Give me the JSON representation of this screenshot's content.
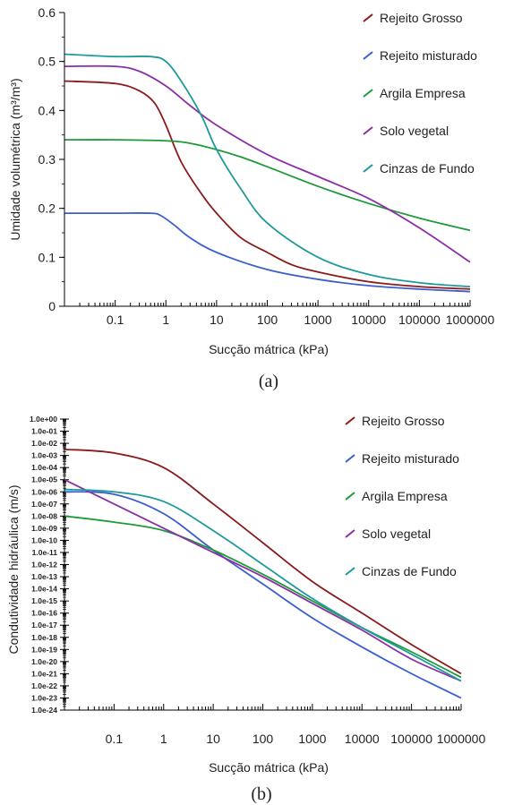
{
  "colors": {
    "rejeito_grosso": "#8B1A1A",
    "rejeito_misturado": "#3A5FCD",
    "argila_empresa": "#1E9A3A",
    "solo_vegetal": "#8B2FA6",
    "cinzas_de_fundo": "#1E9A9A"
  },
  "chart_data": [
    {
      "type": "line",
      "caption": "(a)",
      "xlabel": "Sucção mátrica (kPa)",
      "ylabel": "Umidade volumétrica (m³/m³)",
      "xscale": "log",
      "xlim": [
        0.01,
        1000000
      ],
      "ylim": [
        0,
        0.6
      ],
      "x_ticks": [
        "0.1",
        "1",
        "10",
        "100",
        "1000",
        "10000",
        "100000",
        "1000000"
      ],
      "y_ticks": [
        "0",
        "0.1",
        "0.2",
        "0.3",
        "0.4",
        "0.5",
        "0.6"
      ],
      "legend_position": "top-right",
      "series": [
        {
          "name": "Rejeito Grosso",
          "color_key": "rejeito_grosso",
          "x": [
            0.01,
            0.1,
            0.3,
            0.6,
            1,
            2,
            5,
            10,
            30,
            100,
            300,
            1000,
            10000,
            100000,
            1000000
          ],
          "y": [
            0.46,
            0.455,
            0.44,
            0.415,
            0.37,
            0.295,
            0.23,
            0.19,
            0.14,
            0.11,
            0.085,
            0.07,
            0.05,
            0.04,
            0.035
          ]
        },
        {
          "name": "Rejeito misturado",
          "color_key": "rejeito_misturado",
          "x": [
            0.01,
            0.1,
            0.5,
            0.8,
            1.5,
            3,
            10,
            100,
            1000,
            10000,
            100000,
            1000000
          ],
          "y": [
            0.19,
            0.19,
            0.19,
            0.185,
            0.165,
            0.14,
            0.11,
            0.075,
            0.055,
            0.042,
            0.035,
            0.03
          ]
        },
        {
          "name": "Argila Empresa",
          "color_key": "argila_empresa",
          "x": [
            0.01,
            0.1,
            1,
            3,
            10,
            30,
            100,
            1000,
            10000,
            100000,
            1000000
          ],
          "y": [
            0.34,
            0.34,
            0.338,
            0.333,
            0.32,
            0.305,
            0.285,
            0.245,
            0.21,
            0.18,
            0.155
          ]
        },
        {
          "name": "Solo vegetal",
          "color_key": "solo_vegetal",
          "x": [
            0.01,
            0.1,
            0.3,
            1,
            3,
            10,
            100,
            1000,
            10000,
            100000,
            1000000
          ],
          "y": [
            0.49,
            0.49,
            0.48,
            0.45,
            0.41,
            0.37,
            0.31,
            0.265,
            0.22,
            0.16,
            0.09
          ]
        },
        {
          "name": "Cinzas de Fundo",
          "color_key": "cinzas_de_fundo",
          "x": [
            0.01,
            0.1,
            0.5,
            1,
            2,
            5,
            10,
            30,
            100,
            1000,
            10000,
            100000,
            1000000
          ],
          "y": [
            0.515,
            0.51,
            0.51,
            0.5,
            0.46,
            0.39,
            0.32,
            0.24,
            0.17,
            0.1,
            0.065,
            0.048,
            0.04
          ]
        }
      ]
    },
    {
      "type": "line",
      "caption": "(b)",
      "xlabel": "Sucção mátrica (kPa)",
      "ylabel": "Condutividade hidráulica (m/s)",
      "xscale": "log",
      "yscale": "log",
      "xlim": [
        0.01,
        1000000
      ],
      "ylim": [
        1e-24,
        1
      ],
      "x_ticks": [
        "0.1",
        "1",
        "10",
        "100",
        "1000",
        "10000",
        "100000",
        "1000000"
      ],
      "y_ticks": [
        "1.0e+00",
        "1.0e-01",
        "1.0e-02",
        "1.0e-03",
        "1.0e-04",
        "1.0e-05",
        "1.0e-06",
        "1.0e-07",
        "1.0e-08",
        "1.0e-09",
        "1.0e-10",
        "1.0e-11",
        "1.0e-12",
        "1.0e-13",
        "1.0e-14",
        "1.0e-15",
        "1.0e-16",
        "1.0e-17",
        "1.0e-18",
        "1.0e-19",
        "1.0e-20",
        "1.0e-21",
        "1.0e-22",
        "1.0e-23",
        "1.0e-24"
      ],
      "legend_position": "top-right",
      "series": [
        {
          "name": "Rejeito Grosso",
          "color_key": "rejeito_grosso",
          "x": [
            0.01,
            0.1,
            1,
            10,
            100,
            1000,
            10000,
            100000,
            1000000
          ],
          "log10_y": [
            -2.5,
            -2.8,
            -4.0,
            -7.0,
            -10.2,
            -13.4,
            -16.0,
            -18.6,
            -21.0
          ]
        },
        {
          "name": "Rejeito misturado",
          "color_key": "rejeito_misturado",
          "x": [
            0.01,
            0.1,
            1,
            10,
            100,
            1000,
            10000,
            100000,
            1000000
          ],
          "log10_y": [
            -6.0,
            -6.2,
            -7.8,
            -10.8,
            -13.6,
            -16.4,
            -18.8,
            -21.0,
            -23.0
          ]
        },
        {
          "name": "Argila Empresa",
          "color_key": "argila_empresa",
          "x": [
            0.01,
            0.1,
            1,
            10,
            100,
            1000,
            10000,
            100000,
            1000000
          ],
          "log10_y": [
            -8.0,
            -8.5,
            -9.2,
            -10.8,
            -12.8,
            -15.0,
            -17.2,
            -19.2,
            -21.3
          ]
        },
        {
          "name": "Solo vegetal",
          "color_key": "solo_vegetal",
          "x": [
            0.01,
            0.1,
            1,
            10,
            100,
            1000,
            10000,
            100000,
            1000000
          ],
          "log10_y": [
            -5.0,
            -7.0,
            -9.0,
            -11.0,
            -13.0,
            -15.2,
            -17.4,
            -19.8,
            -21.6
          ]
        },
        {
          "name": "Cinzas de Fundo",
          "color_key": "cinzas_de_fundo",
          "x": [
            0.01,
            0.1,
            1,
            10,
            100,
            1000,
            10000,
            100000,
            1000000
          ],
          "log10_y": [
            -5.8,
            -6.0,
            -6.8,
            -9.2,
            -12.0,
            -14.8,
            -17.2,
            -19.4,
            -21.6
          ]
        }
      ]
    }
  ]
}
